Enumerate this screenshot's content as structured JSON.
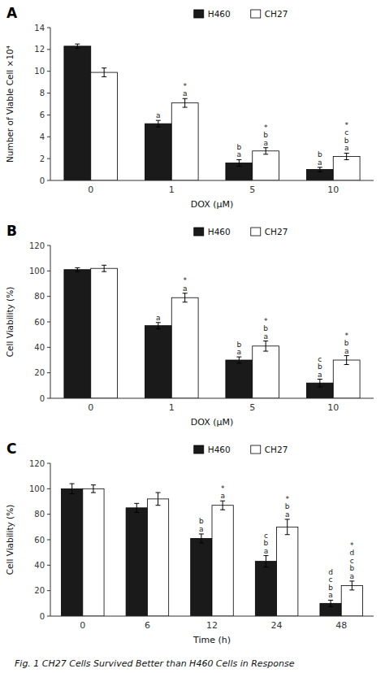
{
  "chart_data": [
    {
      "type": "bar",
      "title": "A",
      "xlabel": "DOX (μM)",
      "ylabel": "Number of Viable Cell ×10⁴",
      "categories": [
        "0",
        "1",
        "5",
        "10"
      ],
      "series": [
        {
          "name": "H460",
          "color": "#1a1a1a",
          "values": [
            12.3,
            5.2,
            1.6,
            1.0
          ],
          "errors": [
            0.2,
            0.3,
            0.3,
            0.2
          ],
          "annotations": [
            null,
            "a",
            "b\na",
            "b\na"
          ]
        },
        {
          "name": "CH27",
          "color": "#ffffff",
          "values": [
            9.9,
            7.1,
            2.7,
            2.2
          ],
          "errors": [
            0.4,
            0.4,
            0.3,
            0.3
          ],
          "annotations": [
            null,
            "*\na",
            "*\nb\na",
            "*\nc\nb\na"
          ]
        }
      ],
      "ylim": [
        0,
        14
      ],
      "yticks": [
        0,
        2,
        4,
        6,
        8,
        10,
        12,
        14
      ],
      "grid": false,
      "legend": "top"
    },
    {
      "type": "bar",
      "title": "B",
      "xlabel": "DOX (μM)",
      "ylabel": "Cell Viability (%)",
      "categories": [
        "0",
        "1",
        "5",
        "10"
      ],
      "series": [
        {
          "name": "H460",
          "color": "#1a1a1a",
          "values": [
            101,
            57,
            30,
            12
          ],
          "errors": [
            1.5,
            2.5,
            2.5,
            3.0
          ],
          "annotations": [
            null,
            "a",
            "b\na",
            "c\nb\na"
          ]
        },
        {
          "name": "CH27",
          "color": "#ffffff",
          "values": [
            102,
            79,
            41,
            30
          ],
          "errors": [
            2.5,
            3.5,
            4.0,
            3.5
          ],
          "annotations": [
            null,
            "*\na",
            "*\nb\na",
            "*\nb\na"
          ]
        }
      ],
      "ylim": [
        0,
        120
      ],
      "yticks": [
        0,
        20,
        40,
        60,
        80,
        100,
        120
      ],
      "grid": false,
      "legend": "top"
    },
    {
      "type": "bar",
      "title": "C",
      "xlabel": "Time (h)",
      "ylabel": "Cell Viability (%)",
      "categories": [
        "0",
        "6",
        "12",
        "24",
        "48"
      ],
      "series": [
        {
          "name": "H460",
          "color": "#1a1a1a",
          "values": [
            100,
            85,
            61,
            43,
            10
          ],
          "errors": [
            4,
            3.5,
            3.5,
            4.5,
            2.5
          ],
          "annotations": [
            null,
            null,
            "b\na",
            "c\nb\na",
            "d\nc\nb\na"
          ]
        },
        {
          "name": "CH27",
          "color": "#ffffff",
          "values": [
            100,
            92,
            87,
            70,
            24
          ],
          "errors": [
            3,
            5,
            3.5,
            6.0,
            3.5
          ],
          "annotations": [
            null,
            null,
            "*\na",
            "*\nb\na",
            "*\nd\nc\nb\na"
          ]
        }
      ],
      "ylim": [
        0,
        120
      ],
      "yticks": [
        0,
        20,
        40,
        60,
        80,
        100,
        120
      ],
      "grid": false,
      "legend": "top"
    }
  ],
  "caption": "Fig. 1   CH27 Cells Survived Better than H460 Cells in Response"
}
